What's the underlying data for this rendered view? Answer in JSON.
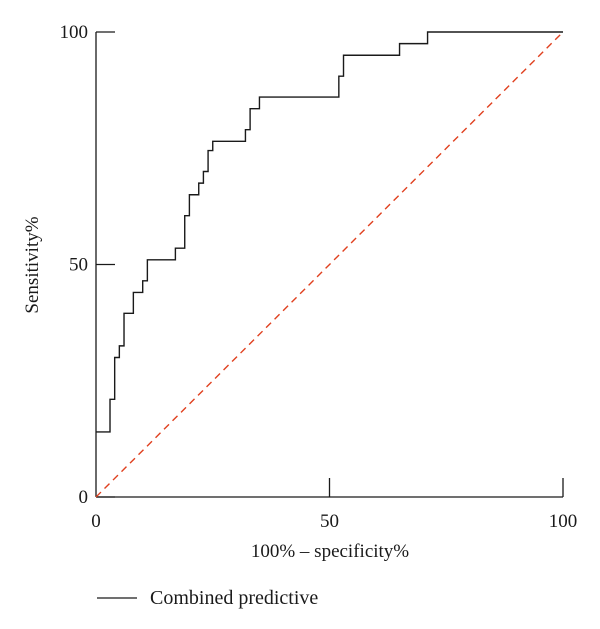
{
  "chart_data": {
    "type": "line",
    "title": "",
    "xlabel": "100% – specificity%",
    "ylabel": "Sensitivity%",
    "xlim": [
      0,
      100
    ],
    "ylim": [
      0,
      100
    ],
    "xticks": [
      0,
      50,
      100
    ],
    "yticks": [
      0,
      50,
      100
    ],
    "grid": false,
    "legend_position": "bottom-left",
    "series": [
      {
        "name": "Combined predictive",
        "color": "#1a1a1a",
        "style": "step",
        "x": [
          0,
          3,
          3,
          4,
          4,
          5,
          5,
          6,
          6,
          8,
          8,
          10,
          10,
          11,
          11,
          17,
          17,
          19,
          19,
          20,
          20,
          22,
          22,
          23,
          23,
          24,
          24,
          25,
          25,
          32,
          32,
          33,
          33,
          35,
          35,
          52,
          52,
          53,
          53,
          65,
          65,
          71,
          71,
          100
        ],
        "y": [
          14,
          14,
          21,
          21,
          30,
          30,
          32.5,
          32.5,
          39.5,
          39.5,
          44,
          44,
          46.5,
          46.5,
          51,
          51,
          53.5,
          53.5,
          60.5,
          60.5,
          65,
          65,
          67.5,
          67.5,
          70,
          70,
          74.5,
          74.5,
          76.5,
          76.5,
          79,
          79,
          83.5,
          83.5,
          86,
          86,
          90.5,
          90.5,
          95,
          95,
          97.5,
          97.5,
          100,
          100
        ]
      },
      {
        "name": "",
        "color": "#e0401f",
        "style": "dashed",
        "x": [
          0,
          100
        ],
        "y": [
          0,
          100
        ]
      }
    ]
  }
}
